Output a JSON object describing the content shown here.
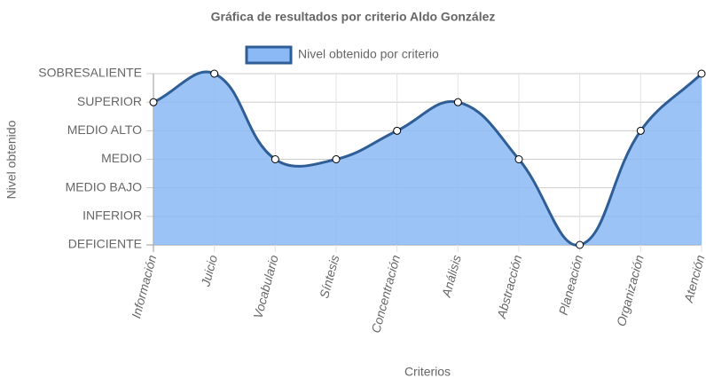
{
  "chart_data": {
    "type": "line",
    "title": "Gráfica de resultados por criterio Aldo González",
    "x_label": "Criterios",
    "y_label": "Nivel obtenido",
    "categories": [
      "Información",
      "Juicio",
      "Vocabulario",
      "Síntesis",
      "Concentración",
      "Análisis",
      "Abstracción",
      "Planeación",
      "Organización",
      "Atención"
    ],
    "series": [
      {
        "name": "Nivel obtenido por criterio",
        "color": "#2f5e96",
        "fill": "#8ab9f5",
        "values": [
          5,
          6,
          3,
          3,
          4,
          5,
          3,
          0,
          4,
          6
        ]
      }
    ],
    "ylim": [
      0,
      6
    ],
    "yticks": [
      {
        "value": 0,
        "label": "DEFICIENTE"
      },
      {
        "value": 1,
        "label": "INFERIOR"
      },
      {
        "value": 2,
        "label": "MEDIO BAJO"
      },
      {
        "value": 3,
        "label": "MEDIO"
      },
      {
        "value": 4,
        "label": "MEDIO ALTO"
      },
      {
        "value": 5,
        "label": "SUPERIOR"
      },
      {
        "value": 6,
        "label": "SOBRESALIENTE"
      }
    ],
    "grid": true,
    "legend": "top"
  }
}
